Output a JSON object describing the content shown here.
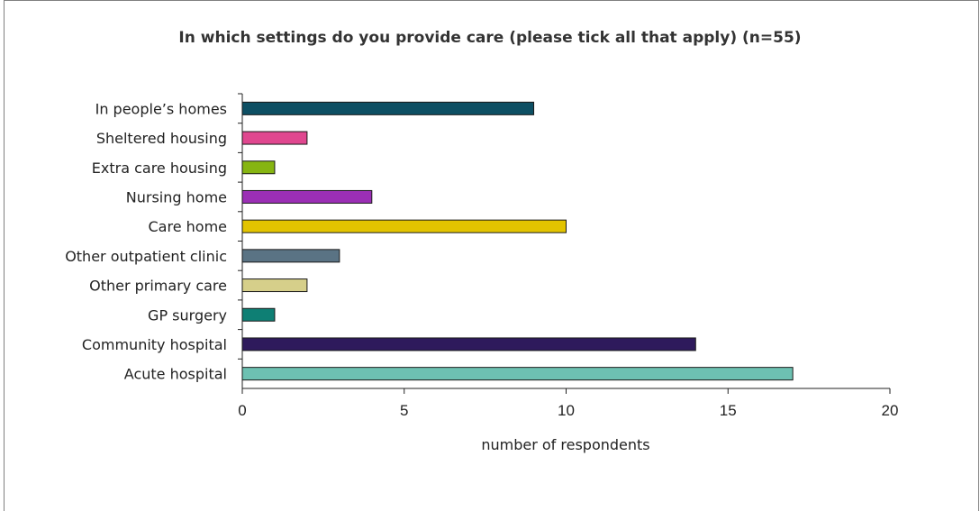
{
  "chart_data": {
    "type": "bar",
    "orientation": "horizontal",
    "title": "In which settings do you provide care (please tick all that apply) (n=55)",
    "xlabel": "number of respondents",
    "ylabel": "",
    "xlim": [
      0,
      20
    ],
    "xticks": [
      "0",
      "5",
      "10",
      "15",
      "20"
    ],
    "grid": false,
    "legend": "none",
    "categories": [
      "In people’s homes",
      "Sheltered housing",
      "Extra care housing",
      "Nursing home",
      "Care home",
      "Other outpatient clinic",
      "Other primary care",
      "GP surgery",
      "Community hospital",
      "Acute hospital"
    ],
    "values": [
      9,
      2,
      1,
      4,
      10,
      3,
      2,
      1,
      14,
      17
    ],
    "colors": [
      "#0d4f63",
      "#e0478f",
      "#86b511",
      "#9b2fb5",
      "#e3c400",
      "#5a7384",
      "#d6cf8a",
      "#0e7f74",
      "#2e1a5c",
      "#6dc1b2"
    ]
  }
}
